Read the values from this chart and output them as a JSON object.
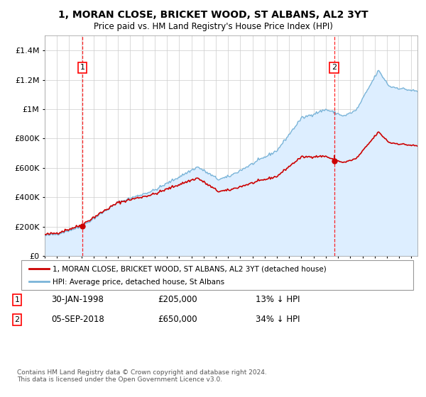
{
  "title": "1, MORAN CLOSE, BRICKET WOOD, ST ALBANS, AL2 3YT",
  "subtitle": "Price paid vs. HM Land Registry's House Price Index (HPI)",
  "sale1_date": "30-JAN-1998",
  "sale2_date": "05-SEP-2018",
  "sale1_price": 205000,
  "sale2_price": 650000,
  "sale1_pct": "13% ↓ HPI",
  "sale2_pct": "34% ↓ HPI",
  "sale1_x": 1998.08,
  "sale2_x": 2018.68,
  "hpi_color": "#7ab4d8",
  "hpi_fill": "#ddeeff",
  "price_color": "#cc0000",
  "legend1": "1, MORAN CLOSE, BRICKET WOOD, ST ALBANS, AL2 3YT (detached house)",
  "legend2": "HPI: Average price, detached house, St Albans",
  "footer": "Contains HM Land Registry data © Crown copyright and database right 2024.\nThis data is licensed under the Open Government Licence v3.0.",
  "yticks": [
    0,
    200000,
    400000,
    600000,
    800000,
    1000000,
    1200000,
    1400000
  ],
  "ylabels": [
    "£0",
    "£200K",
    "£400K",
    "£600K",
    "£800K",
    "£1M",
    "£1.2M",
    "£1.4M"
  ],
  "xmin": 1995.0,
  "xmax": 2025.5,
  "ymin": 0,
  "ymax": 1500000
}
